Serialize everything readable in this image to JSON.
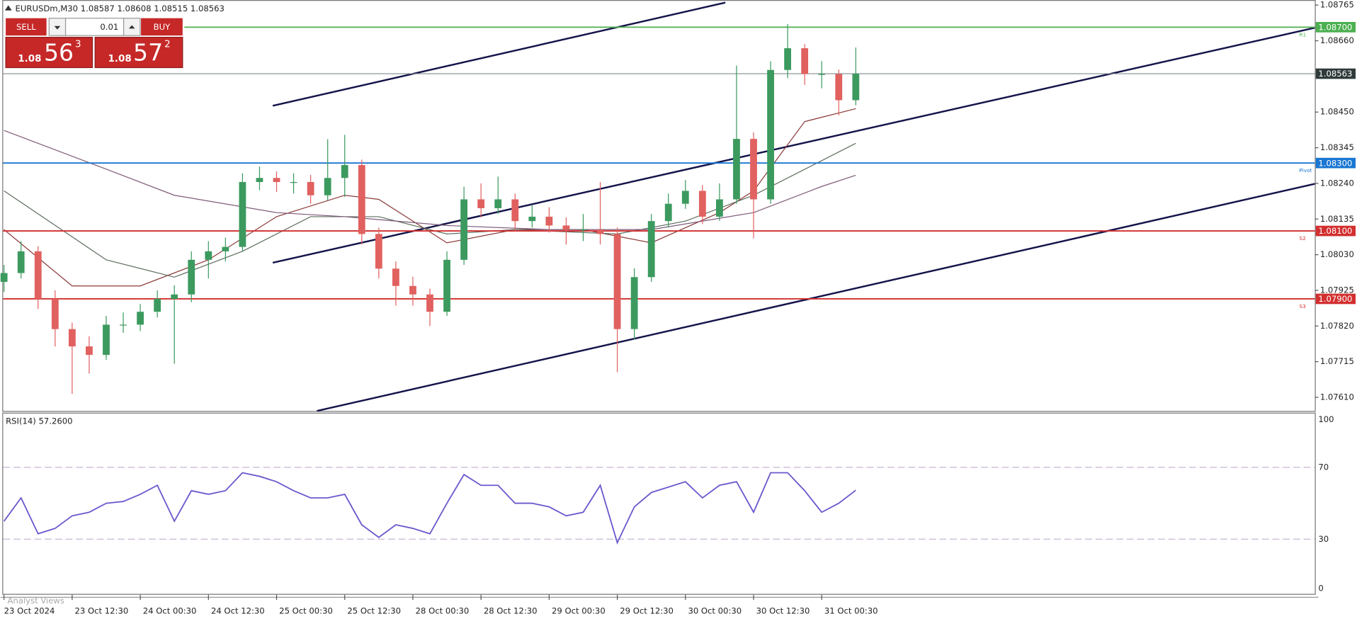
{
  "quote": {
    "symbol": "EURUSDm,M30",
    "open": 1.08587,
    "high": 1.08608,
    "low": 1.08515,
    "close": 1.08563
  },
  "trade_panel": {
    "sell_label": "SELL",
    "buy_label": "BUY",
    "volume": "0.01",
    "sell": {
      "big": "1.08",
      "pips": "56",
      "point": "3"
    },
    "buy": {
      "big": "1.08",
      "pips": "57",
      "point": "2"
    }
  },
  "footer": "Analyst Views",
  "chart_data": {
    "type": "candlestick",
    "categories": [
      "23 Oct 2024",
      null,
      null,
      null,
      "23 Oct 12:30",
      null,
      null,
      null,
      "24 Oct 00:30",
      null,
      null,
      null,
      "24 Oct 12:30",
      null,
      null,
      null,
      "25 Oct 00:30",
      null,
      null,
      null,
      "25 Oct 12:30",
      null,
      null,
      null,
      "28 Oct 00:30",
      null,
      null,
      null,
      "28 Oct 12:30",
      null,
      null,
      null,
      "29 Oct 00:30",
      null,
      null,
      null,
      "29 Oct 12:30",
      null,
      null,
      null,
      "30 Oct 00:30",
      null,
      null,
      null,
      "30 Oct 12:30",
      null,
      null,
      null,
      "31 Oct 00:30",
      null,
      null
    ],
    "open": [
      1.0795,
      1.07976,
      1.0804,
      1.079,
      1.07811,
      1.0776,
      1.07735,
      1.07824,
      1.07824,
      1.07862,
      1.079,
      1.07913,
      1.08015,
      1.0804,
      1.08053,
      1.08244,
      1.08256,
      1.08244,
      1.08244,
      1.08205,
      1.08256,
      1.08294,
      1.08091,
      1.07989,
      1.07938,
      1.07913,
      1.07862,
      1.08015,
      1.08193,
      1.08167,
      1.08193,
      1.08129,
      1.08142,
      1.08116,
      1.08104,
      1.08104,
      1.08091,
      1.07811,
      1.07964,
      1.08129,
      1.0818,
      1.08218,
      1.08142,
      1.08193,
      1.08371,
      1.08193,
      1.08574,
      1.08638,
      1.08562,
      1.08562,
      1.08485
    ],
    "high": [
      1.08,
      1.0807,
      1.08055,
      1.07925,
      1.0783,
      1.0779,
      1.0785,
      1.0786,
      1.07885,
      1.07925,
      1.0794,
      1.0804,
      1.0807,
      1.0808,
      1.0827,
      1.0829,
      1.08275,
      1.0827,
      1.08265,
      1.0837,
      1.08383,
      1.0831,
      1.0811,
      1.0801,
      1.07965,
      1.0793,
      1.0804,
      1.0823,
      1.0824,
      1.0826,
      1.0821,
      1.08175,
      1.0817,
      1.0814,
      1.0815,
      1.08244,
      1.0811,
      1.0799,
      1.0815,
      1.0821,
      1.0825,
      1.08235,
      1.0824,
      1.08587,
      1.0839,
      1.086,
      1.08709,
      1.0865,
      1.086,
      1.08575,
      1.0864
    ],
    "low": [
      1.0792,
      1.0796,
      1.0787,
      1.0776,
      1.0762,
      1.0768,
      1.0772,
      1.078,
      1.07805,
      1.07845,
      1.07709,
      1.0789,
      1.0796,
      1.0801,
      1.0804,
      1.0822,
      1.08215,
      1.0821,
      1.0818,
      1.0819,
      1.082,
      1.0806,
      1.0796,
      1.0788,
      1.0788,
      1.0782,
      1.0785,
      1.08,
      1.0814,
      1.0815,
      1.081,
      1.0811,
      1.08095,
      1.0806,
      1.0807,
      1.0806,
      1.07684,
      1.0778,
      1.0795,
      1.0811,
      1.08165,
      1.0812,
      1.0813,
      1.0818,
      1.08078,
      1.0818,
      1.0855,
      1.0853,
      1.0852,
      1.0844,
      1.0847
    ],
    "close": [
      1.07976,
      1.0804,
      1.079,
      1.07811,
      1.0776,
      1.07735,
      1.07824,
      1.07824,
      1.07862,
      1.079,
      1.07913,
      1.08015,
      1.0804,
      1.08053,
      1.08244,
      1.08256,
      1.08244,
      1.08244,
      1.08205,
      1.08256,
      1.08294,
      1.08091,
      1.07989,
      1.07938,
      1.07913,
      1.07862,
      1.08015,
      1.08193,
      1.08167,
      1.08193,
      1.08129,
      1.08142,
      1.08116,
      1.08104,
      1.08104,
      1.08091,
      1.07811,
      1.07964,
      1.08129,
      1.0818,
      1.08218,
      1.08142,
      1.08193,
      1.08371,
      1.08193,
      1.08574,
      1.08638,
      1.08562,
      1.08562,
      1.08485,
      1.08563
    ],
    "up_color": "#3c9a5f",
    "down_color": "#e0615f",
    "ylim": [
      1.0757,
      1.0878
    ],
    "yticks": [
      1.08765,
      {
        "value": 1.0866,
        "label": "1.08660"
      },
      {
        "value": 1.0845,
        "label": "1.08450"
      },
      1.08345,
      {
        "value": 1.0824,
        "label": "1.08240"
      },
      1.08135,
      {
        "value": 1.0803,
        "label": "1.08030"
      },
      1.07925,
      {
        "value": 1.0782,
        "label": "1.07820"
      },
      1.07715,
      {
        "value": 1.0761,
        "label": "1.07610"
      }
    ],
    "moving_averages": [
      {
        "color": "#8b3a3a",
        "x": [
          0,
          4,
          8,
          12,
          16,
          20,
          22,
          26,
          30,
          34,
          38,
          42,
          44,
          47,
          50
        ],
        "values": [
          1.08104,
          1.07938,
          1.07938,
          1.08015,
          1.08142,
          1.08205,
          1.08193,
          1.08065,
          1.08104,
          1.08104,
          1.08065,
          1.08154,
          1.08218,
          1.08422,
          1.0846
        ]
      },
      {
        "color": "#5f6e5f",
        "x": [
          0,
          6,
          10,
          14,
          18,
          22,
          26,
          30,
          36,
          40,
          44,
          48,
          50
        ],
        "values": [
          1.08218,
          1.08015,
          1.07964,
          1.0804,
          1.08142,
          1.08142,
          1.08091,
          1.08104,
          1.08091,
          1.08129,
          1.08205,
          1.08307,
          1.08358
        ]
      },
      {
        "color": "#7d5a78",
        "x": [
          0,
          6,
          10,
          16,
          20,
          26,
          32,
          38,
          44,
          48,
          50
        ],
        "values": [
          1.08396,
          1.08282,
          1.08205,
          1.08154,
          1.08142,
          1.08116,
          1.08104,
          1.08104,
          1.08154,
          1.08231,
          1.08264
        ]
      }
    ],
    "levels": [
      {
        "value": 1.087,
        "label": "1.08700",
        "name": "R1",
        "color": "#4caf50"
      },
      {
        "value": 1.08563,
        "label": "1.08563",
        "color": "#7f8c8d"
      },
      {
        "value": 1.083,
        "label": "1.08300",
        "name": "Pivot",
        "color": "#1976d2"
      },
      {
        "value": 1.081,
        "label": "1.08100",
        "name": "S2",
        "color": "#d32f2f"
      },
      {
        "value": 1.079,
        "label": "1.07900",
        "name": "S3",
        "color": "#d32f2f"
      }
    ],
    "indicator": {
      "type": "line",
      "title": "RSI(14) 57.2600",
      "color": "#6a5acd",
      "values": [
        40,
        53,
        33,
        36,
        43,
        45,
        50,
        51,
        55,
        60,
        40,
        57,
        55,
        57,
        67,
        65,
        62,
        57,
        53,
        53,
        55,
        38,
        31,
        38,
        36,
        33,
        50,
        66,
        60,
        60,
        50,
        50,
        48,
        43,
        45,
        60,
        28,
        48,
        56,
        59,
        62,
        53,
        60,
        62,
        45,
        67,
        67,
        57,
        45,
        50,
        57.26
      ],
      "ylim": [
        0,
        100
      ],
      "yticks": [
        0,
        30,
        70,
        100
      ]
    }
  }
}
